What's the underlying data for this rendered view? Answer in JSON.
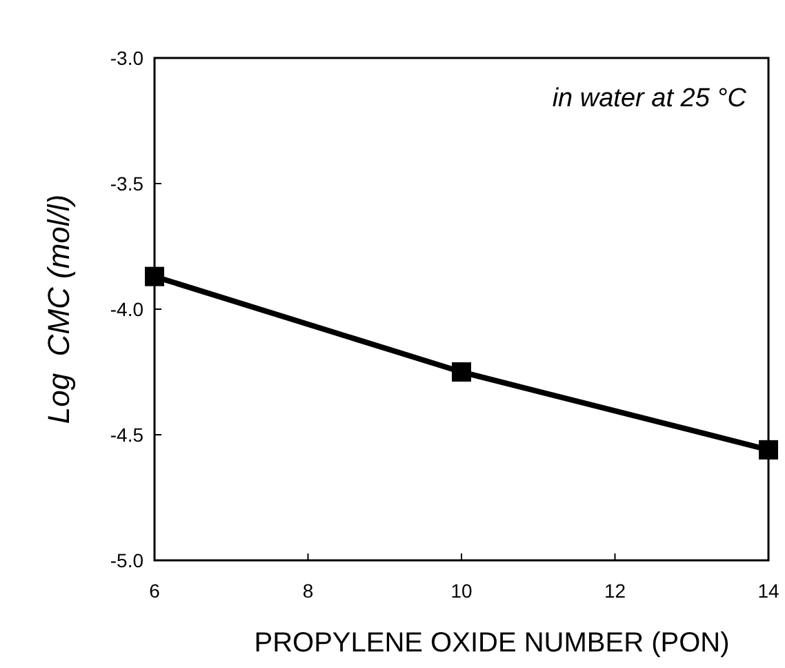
{
  "chart_data": {
    "type": "line",
    "xlabel": "PROPYLENE OXIDE NUMBER (PON)",
    "ylabel": "Log  CMC (mol/l)",
    "annotations": [
      "in water at 25 °C"
    ],
    "x": [
      6,
      10,
      14
    ],
    "series": [
      {
        "color": "#000000",
        "values": [
          -3.87,
          -4.25,
          -4.56
        ]
      }
    ],
    "xlim": [
      6,
      14
    ],
    "xticks": [
      6,
      8,
      10,
      12,
      14
    ],
    "ylim": [
      -5,
      -3
    ],
    "yticks": [
      {
        "value": -5,
        "label": "-5.0"
      },
      {
        "value": -4.5,
        "label": "-4.5"
      },
      {
        "value": -4,
        "label": "-4.0"
      },
      {
        "value": -3.5,
        "label": "-3.5"
      },
      {
        "value": -3,
        "label": "-3.0"
      }
    ],
    "grid": false,
    "marker": "square",
    "line_style": "solid"
  }
}
